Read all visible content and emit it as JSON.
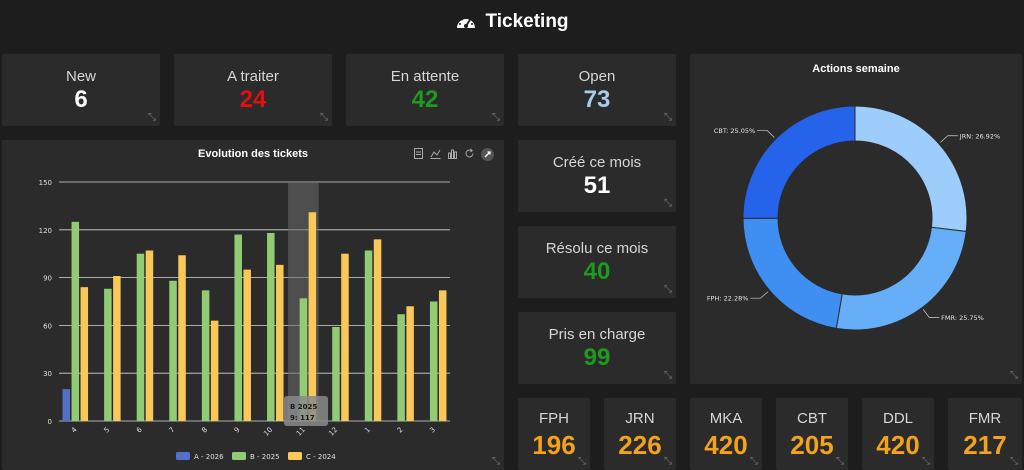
{
  "header": {
    "title": "Ticketing",
    "icon": "gauge-icon"
  },
  "kpis_top": [
    {
      "label": "New",
      "value": "6",
      "color": "#ffffff"
    },
    {
      "label": "A traiter",
      "value": "24",
      "color": "#e01010"
    },
    {
      "label": "En attente",
      "value": "42",
      "color": "#1e9a1e"
    },
    {
      "label": "Open",
      "value": "73",
      "color": "#a6cdea"
    }
  ],
  "kpis_middle": [
    {
      "label": "Créé ce mois",
      "value": "51",
      "color": "#ffffff"
    },
    {
      "label": "Résolu ce mois",
      "value": "40",
      "color": "#1e9a1e"
    },
    {
      "label": "Pris en charge",
      "value": "99",
      "color": "#1e9a1e"
    }
  ],
  "kpis_bottom": [
    {
      "label": "FPH",
      "value": "196"
    },
    {
      "label": "JRN",
      "value": "226"
    },
    {
      "label": "MKA",
      "value": "420"
    },
    {
      "label": "CBT",
      "value": "205"
    },
    {
      "label": "DDL",
      "value": "420"
    },
    {
      "label": "FMR",
      "value": "217"
    }
  ],
  "bar_chart": {
    "tooltip": {
      "line1": "B 2025",
      "line2": "9: 117"
    }
  },
  "chart_data": [
    {
      "type": "bar",
      "title": "Evolution des tickets",
      "categories": [
        "4",
        "5",
        "6",
        "7",
        "8",
        "9",
        "10",
        "11",
        "12",
        "1",
        "2",
        "3"
      ],
      "ylim": [
        0,
        150
      ],
      "yticks": [
        "0",
        "30",
        "60",
        "90",
        "120",
        "150"
      ],
      "series": [
        {
          "name": "A - 2026",
          "color": "#5470c6",
          "values": [
            20,
            0,
            0,
            0,
            0,
            0,
            0,
            0,
            0,
            0,
            0,
            0
          ]
        },
        {
          "name": "B - 2025",
          "color": "#91cc75",
          "values": [
            125,
            83,
            105,
            88,
            82,
            117,
            118,
            77,
            59,
            107,
            67,
            75
          ]
        },
        {
          "name": "C - 2024",
          "color": "#fac858",
          "values": [
            84,
            91,
            107,
            104,
            63,
            95,
            98,
            131,
            105,
            114,
            72,
            82
          ]
        }
      ]
    },
    {
      "type": "pie",
      "title": "Actions semaine",
      "slices": [
        {
          "label": "JRN: 26.92%",
          "value": 26.92,
          "color": "#9ccdfb"
        },
        {
          "label": "FMR: 25.75%",
          "value": 25.75,
          "color": "#66aef8"
        },
        {
          "label": "FPH: 22.28%",
          "value": 22.28,
          "color": "#3f8ef2"
        },
        {
          "label": "CBT: 25.05%",
          "value": 25.05,
          "color": "#2563eb"
        }
      ]
    }
  ]
}
